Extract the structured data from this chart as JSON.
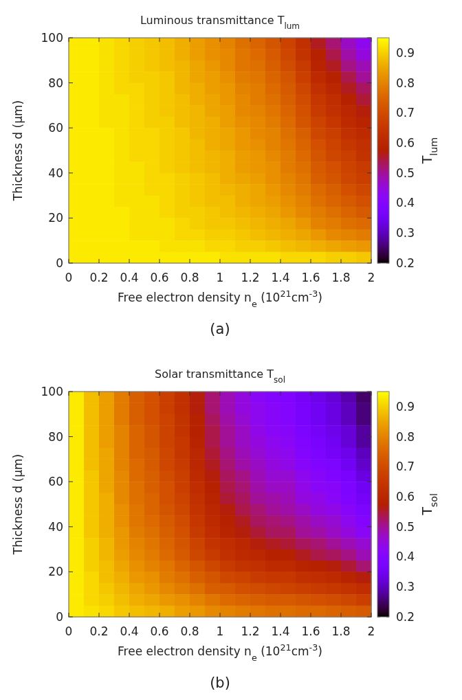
{
  "chart_data": [
    {
      "type": "heatmap",
      "title": "Luminous transmittance T$_{lum}$",
      "xlabel": "Free electron density n$_{e}$ (10$^{21}$cm$^{-3}$)",
      "ylabel": "Thickness d (μm)",
      "clabel": "T$_{lum}$",
      "annotations": [
        "(a)"
      ],
      "x": [
        0.05,
        0.15,
        0.25,
        0.35,
        0.45,
        0.55,
        0.65,
        0.75,
        0.85,
        0.95,
        1.05,
        1.15,
        1.25,
        1.35,
        1.45,
        1.55,
        1.65,
        1.75,
        1.85,
        1.95
      ],
      "y": [
        97.5,
        92.5,
        87.5,
        82.5,
        77.5,
        72.5,
        67.5,
        62.5,
        57.5,
        52.5,
        47.5,
        42.5,
        37.5,
        32.5,
        27.5,
        22.5,
        17.5,
        12.5,
        7.5,
        2.5
      ],
      "xlim": [
        0,
        2
      ],
      "xticks": [
        0,
        0.2,
        0.4,
        0.6,
        0.8,
        1,
        1.2,
        1.4,
        1.6,
        1.8,
        2
      ],
      "ylim": [
        0,
        100
      ],
      "yticks": [
        0,
        20,
        40,
        60,
        80,
        100
      ],
      "clim": [
        0.2,
        0.95
      ],
      "cticks": [
        0.2,
        0.3,
        0.4,
        0.5,
        0.6,
        0.7,
        0.8,
        0.9
      ],
      "cells": [
        [
          0.93,
          0.93,
          0.92,
          0.91,
          0.9,
          0.89,
          0.88,
          0.86,
          0.84,
          0.82,
          0.8,
          0.77,
          0.75,
          0.72,
          0.68,
          0.63,
          0.56,
          0.52,
          0.47,
          0.43
        ],
        [
          0.93,
          0.93,
          0.92,
          0.91,
          0.9,
          0.89,
          0.88,
          0.86,
          0.84,
          0.82,
          0.81,
          0.78,
          0.76,
          0.73,
          0.69,
          0.64,
          0.58,
          0.54,
          0.49,
          0.45
        ],
        [
          0.93,
          0.93,
          0.92,
          0.91,
          0.9,
          0.89,
          0.88,
          0.87,
          0.85,
          0.83,
          0.81,
          0.78,
          0.77,
          0.74,
          0.7,
          0.66,
          0.59,
          0.56,
          0.51,
          0.48
        ],
        [
          0.93,
          0.93,
          0.92,
          0.91,
          0.9,
          0.9,
          0.89,
          0.87,
          0.85,
          0.84,
          0.82,
          0.79,
          0.78,
          0.75,
          0.72,
          0.67,
          0.61,
          0.58,
          0.54,
          0.5
        ],
        [
          0.93,
          0.93,
          0.92,
          0.91,
          0.91,
          0.9,
          0.89,
          0.87,
          0.86,
          0.84,
          0.83,
          0.8,
          0.79,
          0.76,
          0.73,
          0.69,
          0.63,
          0.6,
          0.56,
          0.53
        ],
        [
          0.93,
          0.93,
          0.92,
          0.92,
          0.91,
          0.9,
          0.89,
          0.88,
          0.86,
          0.85,
          0.83,
          0.81,
          0.79,
          0.77,
          0.74,
          0.7,
          0.65,
          0.62,
          0.58,
          0.55
        ],
        [
          0.93,
          0.93,
          0.92,
          0.92,
          0.91,
          0.9,
          0.89,
          0.88,
          0.87,
          0.85,
          0.84,
          0.81,
          0.8,
          0.78,
          0.75,
          0.71,
          0.66,
          0.63,
          0.6,
          0.57
        ],
        [
          0.93,
          0.93,
          0.92,
          0.92,
          0.91,
          0.9,
          0.9,
          0.88,
          0.87,
          0.86,
          0.84,
          0.82,
          0.81,
          0.79,
          0.76,
          0.72,
          0.68,
          0.65,
          0.61,
          0.59
        ],
        [
          0.93,
          0.93,
          0.93,
          0.92,
          0.91,
          0.91,
          0.9,
          0.89,
          0.87,
          0.86,
          0.85,
          0.83,
          0.81,
          0.8,
          0.77,
          0.74,
          0.69,
          0.67,
          0.63,
          0.61
        ],
        [
          0.93,
          0.93,
          0.93,
          0.92,
          0.91,
          0.91,
          0.9,
          0.89,
          0.88,
          0.86,
          0.85,
          0.83,
          0.82,
          0.8,
          0.78,
          0.75,
          0.71,
          0.68,
          0.65,
          0.63
        ],
        [
          0.93,
          0.93,
          0.93,
          0.92,
          0.91,
          0.91,
          0.9,
          0.89,
          0.88,
          0.87,
          0.86,
          0.84,
          0.83,
          0.81,
          0.79,
          0.76,
          0.72,
          0.69,
          0.67,
          0.64
        ],
        [
          0.93,
          0.93,
          0.93,
          0.92,
          0.92,
          0.91,
          0.9,
          0.89,
          0.88,
          0.87,
          0.86,
          0.84,
          0.83,
          0.82,
          0.79,
          0.77,
          0.73,
          0.71,
          0.68,
          0.66
        ],
        [
          0.93,
          0.93,
          0.93,
          0.92,
          0.92,
          0.91,
          0.91,
          0.9,
          0.89,
          0.88,
          0.86,
          0.85,
          0.84,
          0.82,
          0.8,
          0.78,
          0.74,
          0.72,
          0.69,
          0.67
        ],
        [
          0.93,
          0.93,
          0.93,
          0.92,
          0.92,
          0.91,
          0.91,
          0.9,
          0.89,
          0.88,
          0.87,
          0.86,
          0.85,
          0.83,
          0.81,
          0.79,
          0.76,
          0.74,
          0.71,
          0.69
        ],
        [
          0.93,
          0.93,
          0.93,
          0.92,
          0.92,
          0.92,
          0.91,
          0.9,
          0.89,
          0.88,
          0.88,
          0.86,
          0.85,
          0.84,
          0.82,
          0.8,
          0.77,
          0.75,
          0.73,
          0.71
        ],
        [
          0.93,
          0.93,
          0.93,
          0.93,
          0.92,
          0.92,
          0.91,
          0.9,
          0.9,
          0.89,
          0.88,
          0.87,
          0.86,
          0.85,
          0.83,
          0.81,
          0.79,
          0.77,
          0.75,
          0.73
        ],
        [
          0.93,
          0.93,
          0.93,
          0.93,
          0.92,
          0.92,
          0.92,
          0.91,
          0.9,
          0.89,
          0.89,
          0.88,
          0.87,
          0.86,
          0.85,
          0.83,
          0.8,
          0.79,
          0.77,
          0.76
        ],
        [
          0.93,
          0.93,
          0.93,
          0.93,
          0.92,
          0.92,
          0.92,
          0.91,
          0.91,
          0.9,
          0.9,
          0.89,
          0.88,
          0.87,
          0.86,
          0.85,
          0.83,
          0.81,
          0.8,
          0.79
        ],
        [
          0.93,
          0.93,
          0.93,
          0.93,
          0.93,
          0.93,
          0.92,
          0.92,
          0.92,
          0.91,
          0.91,
          0.9,
          0.9,
          0.89,
          0.88,
          0.87,
          0.86,
          0.85,
          0.84,
          0.83
        ],
        [
          0.93,
          0.93,
          0.93,
          0.93,
          0.93,
          0.93,
          0.93,
          0.93,
          0.93,
          0.93,
          0.92,
          0.92,
          0.92,
          0.92,
          0.91,
          0.91,
          0.91,
          0.9,
          0.9,
          0.89
        ]
      ]
    },
    {
      "type": "heatmap",
      "title": "Solar transmittance T$_{sol}$",
      "xlabel": "Free electron density n$_{e}$ (10$^{21}$cm$^{-3}$)",
      "ylabel": "Thickness d (μm)",
      "clabel": "T$_{sol}$",
      "annotations": [
        "(b)"
      ],
      "x": [
        0.05,
        0.15,
        0.25,
        0.35,
        0.45,
        0.55,
        0.65,
        0.75,
        0.85,
        0.95,
        1.05,
        1.15,
        1.25,
        1.35,
        1.45,
        1.55,
        1.65,
        1.75,
        1.85,
        1.95
      ],
      "y": [
        97.5,
        92.5,
        87.5,
        82.5,
        77.5,
        72.5,
        67.5,
        62.5,
        57.5,
        52.5,
        47.5,
        42.5,
        37.5,
        32.5,
        27.5,
        22.5,
        17.5,
        12.5,
        7.5,
        2.5
      ],
      "xlim": [
        0,
        2
      ],
      "xticks": [
        0,
        0.2,
        0.4,
        0.6,
        0.8,
        1,
        1.2,
        1.4,
        1.6,
        1.8,
        2
      ],
      "ylim": [
        0,
        100
      ],
      "yticks": [
        0,
        20,
        40,
        60,
        80,
        100
      ],
      "clim": [
        0.2,
        0.95
      ],
      "cticks": [
        0.2,
        0.3,
        0.4,
        0.5,
        0.6,
        0.7,
        0.8,
        0.9
      ],
      "cells": [
        [
          0.93,
          0.88,
          0.84,
          0.79,
          0.74,
          0.71,
          0.67,
          0.63,
          0.57,
          0.52,
          0.48,
          0.45,
          0.42,
          0.4,
          0.39,
          0.36,
          0.34,
          0.32,
          0.29,
          0.25
        ],
        [
          0.93,
          0.88,
          0.84,
          0.79,
          0.74,
          0.71,
          0.67,
          0.63,
          0.57,
          0.52,
          0.48,
          0.45,
          0.43,
          0.41,
          0.4,
          0.37,
          0.35,
          0.33,
          0.3,
          0.26
        ],
        [
          0.93,
          0.88,
          0.84,
          0.79,
          0.74,
          0.71,
          0.68,
          0.64,
          0.58,
          0.53,
          0.49,
          0.46,
          0.43,
          0.41,
          0.4,
          0.37,
          0.35,
          0.33,
          0.3,
          0.26
        ],
        [
          0.93,
          0.88,
          0.84,
          0.8,
          0.75,
          0.72,
          0.68,
          0.64,
          0.58,
          0.54,
          0.5,
          0.47,
          0.44,
          0.42,
          0.41,
          0.38,
          0.36,
          0.34,
          0.32,
          0.28
        ],
        [
          0.93,
          0.88,
          0.84,
          0.8,
          0.75,
          0.72,
          0.68,
          0.65,
          0.59,
          0.54,
          0.5,
          0.47,
          0.45,
          0.43,
          0.42,
          0.39,
          0.37,
          0.35,
          0.32,
          0.28
        ],
        [
          0.93,
          0.88,
          0.85,
          0.8,
          0.75,
          0.73,
          0.69,
          0.65,
          0.6,
          0.55,
          0.51,
          0.48,
          0.46,
          0.44,
          0.43,
          0.4,
          0.38,
          0.36,
          0.34,
          0.3
        ],
        [
          0.93,
          0.88,
          0.85,
          0.8,
          0.76,
          0.73,
          0.69,
          0.66,
          0.6,
          0.56,
          0.52,
          0.49,
          0.47,
          0.45,
          0.44,
          0.41,
          0.39,
          0.38,
          0.35,
          0.31
        ],
        [
          0.93,
          0.89,
          0.85,
          0.81,
          0.76,
          0.74,
          0.7,
          0.67,
          0.61,
          0.57,
          0.53,
          0.51,
          0.48,
          0.46,
          0.46,
          0.43,
          0.41,
          0.39,
          0.37,
          0.33
        ],
        [
          0.93,
          0.89,
          0.85,
          0.81,
          0.77,
          0.74,
          0.71,
          0.67,
          0.62,
          0.58,
          0.54,
          0.52,
          0.49,
          0.47,
          0.47,
          0.44,
          0.42,
          0.41,
          0.38,
          0.35
        ],
        [
          0.93,
          0.89,
          0.86,
          0.81,
          0.77,
          0.75,
          0.71,
          0.68,
          0.63,
          0.59,
          0.55,
          0.53,
          0.5,
          0.49,
          0.48,
          0.45,
          0.44,
          0.42,
          0.39,
          0.36
        ],
        [
          0.93,
          0.89,
          0.86,
          0.82,
          0.78,
          0.75,
          0.72,
          0.69,
          0.64,
          0.6,
          0.57,
          0.54,
          0.52,
          0.5,
          0.49,
          0.47,
          0.45,
          0.44,
          0.41,
          0.38
        ],
        [
          0.93,
          0.89,
          0.86,
          0.82,
          0.78,
          0.76,
          0.73,
          0.7,
          0.65,
          0.61,
          0.58,
          0.56,
          0.53,
          0.52,
          0.51,
          0.49,
          0.47,
          0.46,
          0.43,
          0.4
        ],
        [
          0.93,
          0.89,
          0.86,
          0.83,
          0.79,
          0.77,
          0.74,
          0.71,
          0.66,
          0.62,
          0.59,
          0.57,
          0.55,
          0.53,
          0.53,
          0.5,
          0.49,
          0.47,
          0.45,
          0.42
        ],
        [
          0.93,
          0.9,
          0.87,
          0.83,
          0.8,
          0.78,
          0.75,
          0.72,
          0.68,
          0.64,
          0.62,
          0.6,
          0.57,
          0.56,
          0.55,
          0.53,
          0.52,
          0.5,
          0.48,
          0.46
        ],
        [
          0.93,
          0.9,
          0.87,
          0.84,
          0.81,
          0.79,
          0.76,
          0.73,
          0.69,
          0.66,
          0.63,
          0.61,
          0.6,
          0.58,
          0.58,
          0.56,
          0.54,
          0.53,
          0.51,
          0.48
        ],
        [
          0.93,
          0.9,
          0.88,
          0.85,
          0.82,
          0.8,
          0.78,
          0.75,
          0.72,
          0.69,
          0.66,
          0.64,
          0.63,
          0.61,
          0.61,
          0.59,
          0.58,
          0.57,
          0.55,
          0.52
        ],
        [
          0.93,
          0.91,
          0.88,
          0.86,
          0.83,
          0.82,
          0.79,
          0.77,
          0.74,
          0.72,
          0.69,
          0.68,
          0.66,
          0.65,
          0.65,
          0.63,
          0.62,
          0.61,
          0.59,
          0.57
        ],
        [
          0.93,
          0.91,
          0.89,
          0.87,
          0.85,
          0.83,
          0.81,
          0.79,
          0.77,
          0.74,
          0.73,
          0.71,
          0.7,
          0.69,
          0.68,
          0.67,
          0.66,
          0.65,
          0.64,
          0.62
        ],
        [
          0.93,
          0.91,
          0.9,
          0.88,
          0.86,
          0.85,
          0.83,
          0.82,
          0.8,
          0.78,
          0.76,
          0.75,
          0.74,
          0.73,
          0.73,
          0.72,
          0.71,
          0.7,
          0.69,
          0.67
        ],
        [
          0.93,
          0.92,
          0.91,
          0.89,
          0.88,
          0.87,
          0.86,
          0.84,
          0.83,
          0.81,
          0.8,
          0.79,
          0.78,
          0.77,
          0.77,
          0.76,
          0.76,
          0.75,
          0.74,
          0.73
        ]
      ]
    }
  ]
}
